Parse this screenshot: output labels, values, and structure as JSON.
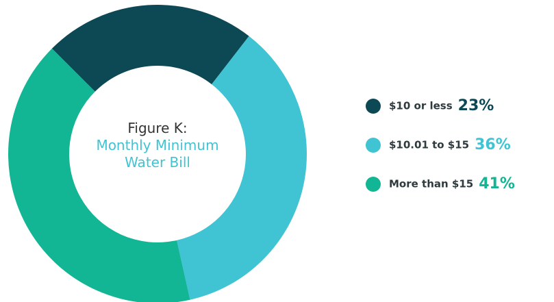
{
  "chart_data": {
    "type": "donut",
    "title": "Figure K:",
    "subtitle": "Monthly Minimum Water Bill",
    "categories": [
      "$10 or less",
      "$10.01 to $15",
      "More than $15"
    ],
    "values": [
      23,
      36,
      41
    ],
    "value_labels": [
      "23%",
      "36%",
      "41%"
    ],
    "colors": [
      "#0d4855",
      "#40c3d2",
      "#12b594"
    ]
  }
}
